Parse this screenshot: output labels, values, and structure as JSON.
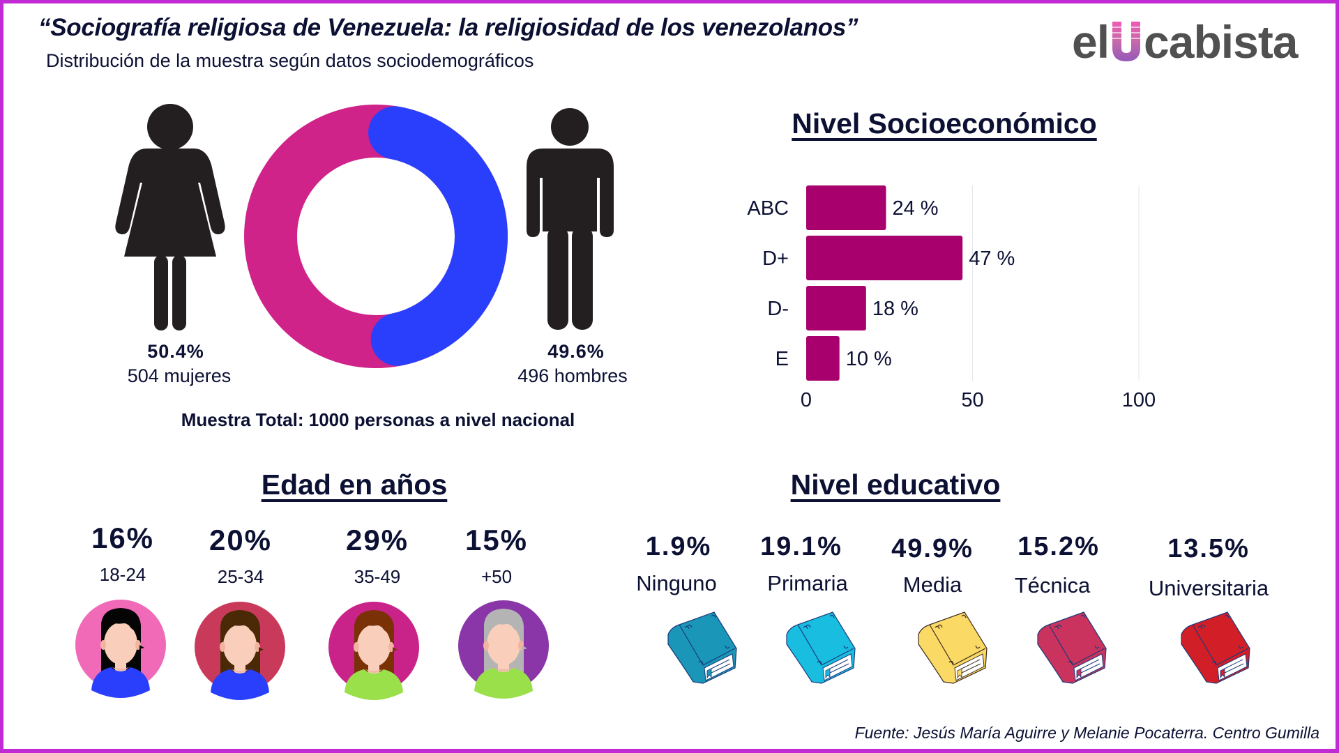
{
  "header": {
    "title": "“Sociografía religiosa de Venezuela: la religiosidad de los venezolanos”",
    "subtitle": "Distribución de la muestra según datos sociodemográficos",
    "logo": {
      "prefix": "el",
      "highlight": "U",
      "suffix": "cabista"
    }
  },
  "gender": {
    "female": {
      "percent": "50.4%",
      "label": "504 mujeres",
      "icon": "woman-icon"
    },
    "male": {
      "percent": "49.6%",
      "label": "496 hombres",
      "icon": "man-icon"
    },
    "sample_total": "Muestra Total: 1000 personas a nivel nacional"
  },
  "socioeconomic": {
    "heading": "Nivel Socioeconómico",
    "value_labels": [
      "24 %",
      "47 %",
      "18 %",
      "10 %"
    ],
    "ticks": [
      "0",
      "50",
      "100"
    ]
  },
  "age": {
    "heading": "Edad en años",
    "groups": [
      {
        "percent": "16%",
        "range": "18-24",
        "icon": "young-woman-avatar-icon"
      },
      {
        "percent": "20%",
        "range": "25-34",
        "icon": "woman-avatar-icon"
      },
      {
        "percent": "29%",
        "range": "35-49",
        "icon": "woman-avatar-icon"
      },
      {
        "percent": "15%",
        "range": "+50",
        "icon": "senior-woman-avatar-icon"
      }
    ]
  },
  "education": {
    "heading": "Nivel educativo",
    "levels": [
      {
        "percent": "1.9%",
        "label": "Ninguno",
        "icon": "book-icon"
      },
      {
        "percent": "19.1%",
        "label": "Primaria",
        "icon": "book-icon"
      },
      {
        "percent": "49.9%",
        "label": "Media",
        "icon": "book-icon"
      },
      {
        "percent": "15.2%",
        "label": "Técnica",
        "icon": "book-icon"
      },
      {
        "percent": "13.5%",
        "label": "Universitaria",
        "icon": "book-icon"
      }
    ]
  },
  "source": "Fuente: Jesús María Aguirre y Melanie Pocaterra. Centro Gumilla",
  "colors": {
    "frame": "#c02bd3",
    "text": "#0c1033",
    "female": "#d0238a",
    "male": "#2a3ffb",
    "bar": "#a8006c",
    "figure": "#231f20",
    "avatar_bg": [
      "#f06ab8",
      "#c93a5a",
      "#c9238a",
      "#8a35a8"
    ],
    "hair": [
      "#050505",
      "#4a2a06",
      "#7a3106",
      "#b4b4b4"
    ],
    "shirt": [
      "#2a3ffb",
      "#2a3ffb",
      "#9ae04a",
      "#9ae04a"
    ],
    "book": [
      "#1996b8",
      "#18bde0",
      "#fbd965",
      "#c9335d",
      "#d21f27"
    ]
  },
  "chart_data": [
    {
      "type": "pie",
      "title": "Sexo",
      "categories": [
        "Mujeres",
        "Hombres"
      ],
      "values": [
        50.4,
        49.6
      ],
      "counts": [
        504,
        496
      ],
      "total": 1000
    },
    {
      "type": "bar",
      "orientation": "horizontal",
      "title": "Nivel Socioeconómico",
      "categories": [
        "ABC",
        "D+",
        "D-",
        "E"
      ],
      "values": [
        24,
        47,
        18,
        10
      ],
      "xlabel": "",
      "ylabel": "",
      "xlim": [
        0,
        100
      ],
      "xticks": [
        0,
        50,
        100
      ],
      "grid": true
    },
    {
      "type": "table",
      "title": "Edad en años",
      "categories": [
        "18-24",
        "25-34",
        "35-49",
        "+50"
      ],
      "values": [
        16,
        20,
        29,
        15
      ]
    },
    {
      "type": "table",
      "title": "Nivel educativo",
      "categories": [
        "Ninguno",
        "Primaria",
        "Media",
        "Técnica",
        "Universitaria"
      ],
      "values": [
        1.9,
        19.1,
        49.9,
        15.2,
        13.5
      ]
    }
  ]
}
